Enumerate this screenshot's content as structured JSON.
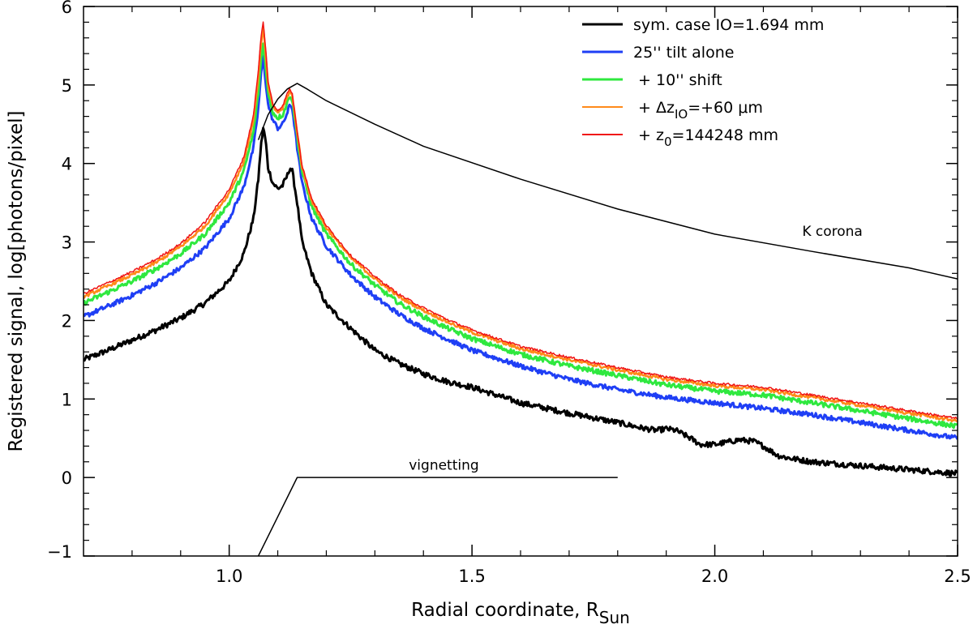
{
  "chart_data": {
    "type": "line",
    "title": "",
    "xlabel": "Radial coordinate, R",
    "xlabel_sub": "Sun",
    "ylabel": "Registered signal, log[photons/pixel]",
    "xlim": [
      0.7,
      2.5
    ],
    "ylim": [
      -1,
      6
    ],
    "xticks": [
      1.0,
      1.5,
      2.0,
      2.5
    ],
    "xtick_labels": [
      "1.0",
      "1.5",
      "2.0",
      "2.5"
    ],
    "yticks": [
      -1,
      0,
      1,
      2,
      3,
      4,
      5,
      6
    ],
    "ytick_labels": [
      "−1",
      "0",
      "1",
      "2",
      "3",
      "4",
      "5",
      "6"
    ],
    "grid": false,
    "legend_position": "top-right",
    "annotations": [
      {
        "text": "K corona",
        "x": 2.18,
        "y": 3.08
      },
      {
        "text": "vignetting",
        "x": 1.37,
        "y": 0.1
      }
    ],
    "legend": {
      "items": [
        {
          "prefix": "sym. case IO=1.694 mm",
          "sub": "",
          "suffix": "",
          "color": "#000000"
        },
        {
          "prefix": "25'' tilt alone",
          "sub": "",
          "suffix": "",
          "color": "#1f3ff5"
        },
        {
          "prefix": " + 10'' shift",
          "sub": "",
          "suffix": "",
          "color": "#2fe83f"
        },
        {
          "prefix": " + Δz",
          "sub": "IO",
          "suffix": "=+60 μm",
          "color": "#ff8a1a"
        },
        {
          "prefix": " + z",
          "sub": "0",
          "suffix": "=144248 mm",
          "color": "#f01414"
        }
      ]
    },
    "series": [
      {
        "name": "sym. case IO=1.694 mm",
        "color": "#000000",
        "width": 3,
        "noise": 0.035,
        "x": [
          0.7,
          0.75,
          0.8,
          0.85,
          0.9,
          0.95,
          1.0,
          1.03,
          1.05,
          1.06,
          1.065,
          1.07,
          1.075,
          1.08,
          1.09,
          1.1,
          1.11,
          1.12,
          1.125,
          1.13,
          1.14,
          1.15,
          1.17,
          1.2,
          1.25,
          1.3,
          1.35,
          1.4,
          1.45,
          1.5,
          1.55,
          1.6,
          1.7,
          1.8,
          1.85,
          1.88,
          1.9,
          1.92,
          1.95,
          1.97,
          2.0,
          2.05,
          2.08,
          2.1,
          2.13,
          2.15,
          2.2,
          2.3,
          2.4,
          2.5
        ],
        "y": [
          1.5,
          1.62,
          1.75,
          1.88,
          2.03,
          2.22,
          2.5,
          2.85,
          3.3,
          3.8,
          4.2,
          4.45,
          4.3,
          3.95,
          3.75,
          3.68,
          3.72,
          3.85,
          3.95,
          3.9,
          3.5,
          3.0,
          2.6,
          2.2,
          1.9,
          1.62,
          1.45,
          1.32,
          1.22,
          1.15,
          1.05,
          0.95,
          0.82,
          0.7,
          0.63,
          0.6,
          0.62,
          0.6,
          0.5,
          0.42,
          0.42,
          0.48,
          0.46,
          0.4,
          0.28,
          0.25,
          0.2,
          0.15,
          0.1,
          0.05
        ]
      },
      {
        "name": "25'' tilt alone",
        "color": "#1f3ff5",
        "width": 3,
        "noise": 0.03,
        "x": [
          0.7,
          0.75,
          0.8,
          0.85,
          0.9,
          0.95,
          1.0,
          1.03,
          1.05,
          1.06,
          1.065,
          1.07,
          1.075,
          1.08,
          1.09,
          1.1,
          1.11,
          1.12,
          1.125,
          1.13,
          1.14,
          1.15,
          1.17,
          1.2,
          1.25,
          1.3,
          1.35,
          1.4,
          1.45,
          1.5,
          1.6,
          1.7,
          1.8,
          1.9,
          2.0,
          2.1,
          2.2,
          2.3,
          2.4,
          2.5
        ],
        "y": [
          2.05,
          2.18,
          2.32,
          2.48,
          2.67,
          2.92,
          3.3,
          3.7,
          4.2,
          4.7,
          5.1,
          5.35,
          5.05,
          4.75,
          4.55,
          4.45,
          4.5,
          4.65,
          4.75,
          4.7,
          4.2,
          3.75,
          3.3,
          2.95,
          2.58,
          2.3,
          2.08,
          1.9,
          1.76,
          1.62,
          1.42,
          1.25,
          1.12,
          1.02,
          0.95,
          0.88,
          0.8,
          0.7,
          0.6,
          0.5
        ]
      },
      {
        "name": " + 10'' shift",
        "color": "#2fe83f",
        "width": 3,
        "noise": 0.03,
        "x": [
          0.7,
          0.75,
          0.8,
          0.85,
          0.9,
          0.95,
          1.0,
          1.03,
          1.05,
          1.06,
          1.065,
          1.07,
          1.075,
          1.08,
          1.09,
          1.1,
          1.11,
          1.12,
          1.125,
          1.13,
          1.14,
          1.15,
          1.17,
          1.2,
          1.25,
          1.3,
          1.35,
          1.4,
          1.45,
          1.5,
          1.6,
          1.7,
          1.8,
          1.9,
          2.0,
          2.1,
          2.2,
          2.3,
          2.4,
          2.5
        ],
        "y": [
          2.22,
          2.36,
          2.5,
          2.66,
          2.85,
          3.1,
          3.5,
          3.9,
          4.4,
          4.9,
          5.3,
          5.52,
          5.25,
          4.9,
          4.65,
          4.58,
          4.62,
          4.78,
          4.88,
          4.8,
          4.35,
          3.9,
          3.45,
          3.1,
          2.72,
          2.45,
          2.22,
          2.05,
          1.9,
          1.77,
          1.57,
          1.42,
          1.3,
          1.18,
          1.1,
          1.05,
          0.95,
          0.85,
          0.75,
          0.65
        ]
      },
      {
        "name": " + ΔzIO=+60 μm",
        "color": "#ff8a1a",
        "width": 2.5,
        "noise": 0.02,
        "x": [
          0.7,
          0.75,
          0.8,
          0.85,
          0.9,
          0.95,
          1.0,
          1.03,
          1.05,
          1.06,
          1.065,
          1.07,
          1.075,
          1.08,
          1.09,
          1.1,
          1.11,
          1.12,
          1.125,
          1.13,
          1.14,
          1.15,
          1.17,
          1.2,
          1.25,
          1.3,
          1.35,
          1.4,
          1.45,
          1.5,
          1.6,
          1.7,
          1.8,
          1.9,
          2.0,
          2.1,
          2.2,
          2.3,
          2.4,
          2.5
        ],
        "y": [
          2.3,
          2.44,
          2.58,
          2.74,
          2.94,
          3.2,
          3.62,
          4.02,
          4.55,
          5.1,
          5.5,
          5.72,
          5.4,
          5.0,
          4.72,
          4.65,
          4.7,
          4.85,
          4.93,
          4.85,
          4.4,
          3.95,
          3.52,
          3.18,
          2.8,
          2.53,
          2.3,
          2.13,
          1.98,
          1.85,
          1.64,
          1.5,
          1.37,
          1.25,
          1.17,
          1.12,
          1.02,
          0.92,
          0.82,
          0.72
        ]
      },
      {
        "name": " + z0=144248 mm",
        "color": "#f01414",
        "width": 1.5,
        "noise": 0.015,
        "x": [
          0.7,
          0.75,
          0.8,
          0.85,
          0.9,
          0.95,
          1.0,
          1.03,
          1.05,
          1.06,
          1.065,
          1.07,
          1.075,
          1.08,
          1.09,
          1.1,
          1.11,
          1.12,
          1.125,
          1.13,
          1.14,
          1.15,
          1.17,
          1.2,
          1.25,
          1.3,
          1.35,
          1.4,
          1.45,
          1.5,
          1.6,
          1.7,
          1.8,
          1.9,
          2.0,
          2.1,
          2.2,
          2.3,
          2.4,
          2.5
        ],
        "y": [
          2.34,
          2.48,
          2.62,
          2.78,
          2.98,
          3.25,
          3.67,
          4.08,
          4.62,
          5.18,
          5.58,
          5.8,
          5.48,
          5.05,
          4.75,
          4.68,
          4.73,
          4.9,
          4.96,
          4.88,
          4.42,
          3.98,
          3.55,
          3.21,
          2.83,
          2.56,
          2.33,
          2.16,
          2.01,
          1.88,
          1.67,
          1.53,
          1.4,
          1.28,
          1.2,
          1.15,
          1.05,
          0.95,
          0.85,
          0.75
        ]
      },
      {
        "name": "K corona",
        "color": "#000000",
        "width": 1.5,
        "noise": 0,
        "x": [
          1.06,
          1.08,
          1.1,
          1.12,
          1.14,
          1.16,
          1.2,
          1.3,
          1.4,
          1.6,
          1.8,
          2.0,
          2.2,
          2.4,
          2.5
        ],
        "y": [
          4.3,
          4.62,
          4.82,
          4.95,
          5.02,
          4.95,
          4.8,
          4.5,
          4.22,
          3.8,
          3.42,
          3.1,
          2.88,
          2.67,
          2.53
        ]
      },
      {
        "name": "vignetting",
        "color": "#000000",
        "width": 1.5,
        "noise": 0,
        "x": [
          1.06,
          1.14,
          1.8
        ],
        "y": [
          -1.0,
          0.0,
          0.0
        ]
      }
    ]
  }
}
